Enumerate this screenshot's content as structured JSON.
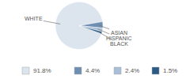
{
  "chart_data": {
    "type": "pie",
    "categories": [
      "WHITE",
      "ASIAN",
      "HISPANIC",
      "BLACK"
    ],
    "values": [
      91.8,
      4.4,
      2.4,
      1.5
    ],
    "value_labels": [
      "91.8%",
      "4.4%",
      "2.4%",
      "1.5%"
    ],
    "colors": [
      "#dce4ee",
      "#6f8fb2",
      "#a9bfd7",
      "#2b5b84"
    ],
    "legend": "bottom"
  }
}
